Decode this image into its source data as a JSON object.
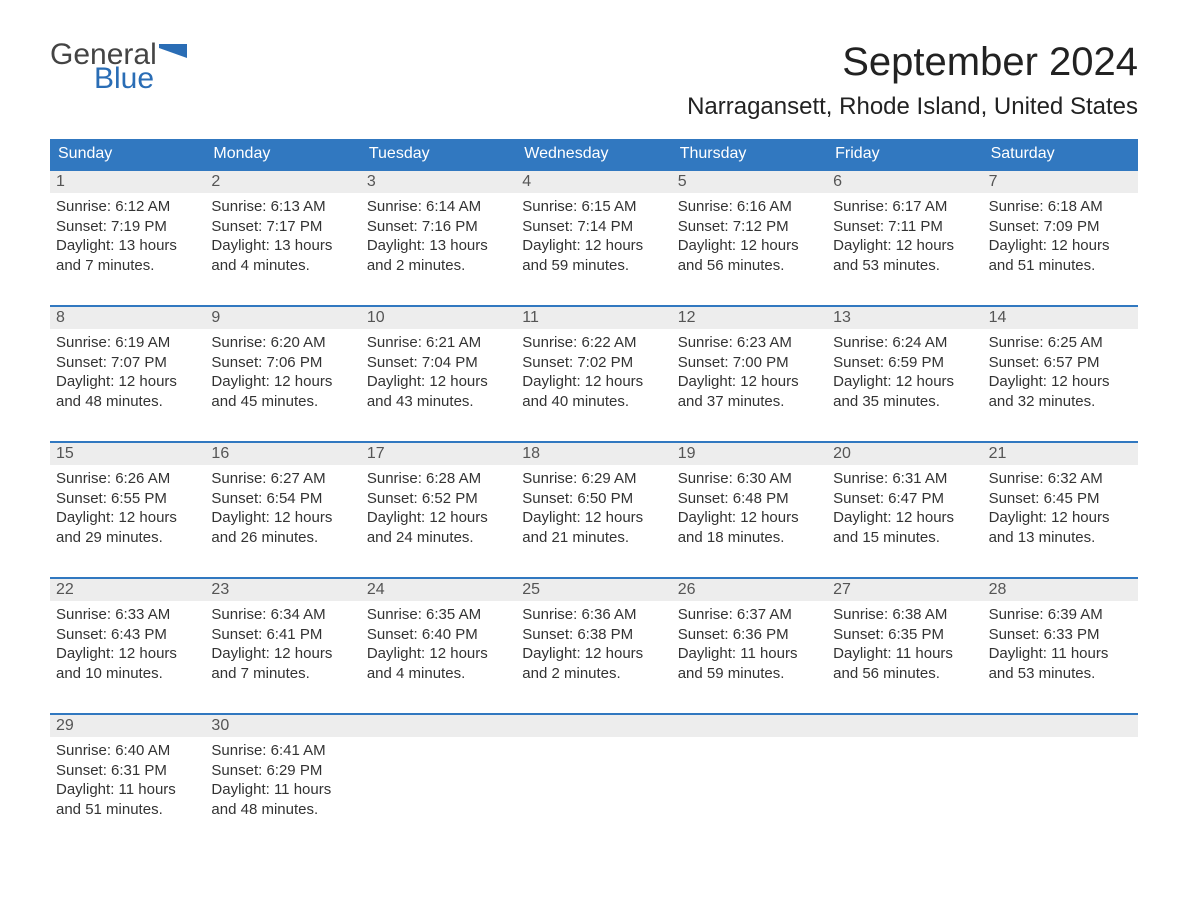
{
  "logo": {
    "text_general": "General",
    "text_blue": "Blue",
    "flag_color": "#2a6db5",
    "text_gray": "#444444"
  },
  "title": "September 2024",
  "location": "Narragansett, Rhode Island, United States",
  "colors": {
    "header_bg": "#3178c0",
    "header_text": "#ffffff",
    "week_border": "#3178c0",
    "date_strip_bg": "#ededed",
    "date_strip_text": "#555555",
    "body_text": "#333333",
    "page_bg": "#ffffff"
  },
  "typography": {
    "title_fontsize": 40,
    "location_fontsize": 24,
    "header_fontsize": 16,
    "date_fontsize": 16,
    "body_fontsize": 15,
    "logo_fontsize": 30
  },
  "day_names": [
    "Sunday",
    "Monday",
    "Tuesday",
    "Wednesday",
    "Thursday",
    "Friday",
    "Saturday"
  ],
  "weeks": [
    [
      {
        "date": "1",
        "sunrise": "Sunrise: 6:12 AM",
        "sunset": "Sunset: 7:19 PM",
        "day1": "Daylight: 13 hours",
        "day2": "and 7 minutes."
      },
      {
        "date": "2",
        "sunrise": "Sunrise: 6:13 AM",
        "sunset": "Sunset: 7:17 PM",
        "day1": "Daylight: 13 hours",
        "day2": "and 4 minutes."
      },
      {
        "date": "3",
        "sunrise": "Sunrise: 6:14 AM",
        "sunset": "Sunset: 7:16 PM",
        "day1": "Daylight: 13 hours",
        "day2": "and 2 minutes."
      },
      {
        "date": "4",
        "sunrise": "Sunrise: 6:15 AM",
        "sunset": "Sunset: 7:14 PM",
        "day1": "Daylight: 12 hours",
        "day2": "and 59 minutes."
      },
      {
        "date": "5",
        "sunrise": "Sunrise: 6:16 AM",
        "sunset": "Sunset: 7:12 PM",
        "day1": "Daylight: 12 hours",
        "day2": "and 56 minutes."
      },
      {
        "date": "6",
        "sunrise": "Sunrise: 6:17 AM",
        "sunset": "Sunset: 7:11 PM",
        "day1": "Daylight: 12 hours",
        "day2": "and 53 minutes."
      },
      {
        "date": "7",
        "sunrise": "Sunrise: 6:18 AM",
        "sunset": "Sunset: 7:09 PM",
        "day1": "Daylight: 12 hours",
        "day2": "and 51 minutes."
      }
    ],
    [
      {
        "date": "8",
        "sunrise": "Sunrise: 6:19 AM",
        "sunset": "Sunset: 7:07 PM",
        "day1": "Daylight: 12 hours",
        "day2": "and 48 minutes."
      },
      {
        "date": "9",
        "sunrise": "Sunrise: 6:20 AM",
        "sunset": "Sunset: 7:06 PM",
        "day1": "Daylight: 12 hours",
        "day2": "and 45 minutes."
      },
      {
        "date": "10",
        "sunrise": "Sunrise: 6:21 AM",
        "sunset": "Sunset: 7:04 PM",
        "day1": "Daylight: 12 hours",
        "day2": "and 43 minutes."
      },
      {
        "date": "11",
        "sunrise": "Sunrise: 6:22 AM",
        "sunset": "Sunset: 7:02 PM",
        "day1": "Daylight: 12 hours",
        "day2": "and 40 minutes."
      },
      {
        "date": "12",
        "sunrise": "Sunrise: 6:23 AM",
        "sunset": "Sunset: 7:00 PM",
        "day1": "Daylight: 12 hours",
        "day2": "and 37 minutes."
      },
      {
        "date": "13",
        "sunrise": "Sunrise: 6:24 AM",
        "sunset": "Sunset: 6:59 PM",
        "day1": "Daylight: 12 hours",
        "day2": "and 35 minutes."
      },
      {
        "date": "14",
        "sunrise": "Sunrise: 6:25 AM",
        "sunset": "Sunset: 6:57 PM",
        "day1": "Daylight: 12 hours",
        "day2": "and 32 minutes."
      }
    ],
    [
      {
        "date": "15",
        "sunrise": "Sunrise: 6:26 AM",
        "sunset": "Sunset: 6:55 PM",
        "day1": "Daylight: 12 hours",
        "day2": "and 29 minutes."
      },
      {
        "date": "16",
        "sunrise": "Sunrise: 6:27 AM",
        "sunset": "Sunset: 6:54 PM",
        "day1": "Daylight: 12 hours",
        "day2": "and 26 minutes."
      },
      {
        "date": "17",
        "sunrise": "Sunrise: 6:28 AM",
        "sunset": "Sunset: 6:52 PM",
        "day1": "Daylight: 12 hours",
        "day2": "and 24 minutes."
      },
      {
        "date": "18",
        "sunrise": "Sunrise: 6:29 AM",
        "sunset": "Sunset: 6:50 PM",
        "day1": "Daylight: 12 hours",
        "day2": "and 21 minutes."
      },
      {
        "date": "19",
        "sunrise": "Sunrise: 6:30 AM",
        "sunset": "Sunset: 6:48 PM",
        "day1": "Daylight: 12 hours",
        "day2": "and 18 minutes."
      },
      {
        "date": "20",
        "sunrise": "Sunrise: 6:31 AM",
        "sunset": "Sunset: 6:47 PM",
        "day1": "Daylight: 12 hours",
        "day2": "and 15 minutes."
      },
      {
        "date": "21",
        "sunrise": "Sunrise: 6:32 AM",
        "sunset": "Sunset: 6:45 PM",
        "day1": "Daylight: 12 hours",
        "day2": "and 13 minutes."
      }
    ],
    [
      {
        "date": "22",
        "sunrise": "Sunrise: 6:33 AM",
        "sunset": "Sunset: 6:43 PM",
        "day1": "Daylight: 12 hours",
        "day2": "and 10 minutes."
      },
      {
        "date": "23",
        "sunrise": "Sunrise: 6:34 AM",
        "sunset": "Sunset: 6:41 PM",
        "day1": "Daylight: 12 hours",
        "day2": "and 7 minutes."
      },
      {
        "date": "24",
        "sunrise": "Sunrise: 6:35 AM",
        "sunset": "Sunset: 6:40 PM",
        "day1": "Daylight: 12 hours",
        "day2": "and 4 minutes."
      },
      {
        "date": "25",
        "sunrise": "Sunrise: 6:36 AM",
        "sunset": "Sunset: 6:38 PM",
        "day1": "Daylight: 12 hours",
        "day2": "and 2 minutes."
      },
      {
        "date": "26",
        "sunrise": "Sunrise: 6:37 AM",
        "sunset": "Sunset: 6:36 PM",
        "day1": "Daylight: 11 hours",
        "day2": "and 59 minutes."
      },
      {
        "date": "27",
        "sunrise": "Sunrise: 6:38 AM",
        "sunset": "Sunset: 6:35 PM",
        "day1": "Daylight: 11 hours",
        "day2": "and 56 minutes."
      },
      {
        "date": "28",
        "sunrise": "Sunrise: 6:39 AM",
        "sunset": "Sunset: 6:33 PM",
        "day1": "Daylight: 11 hours",
        "day2": "and 53 minutes."
      }
    ],
    [
      {
        "date": "29",
        "sunrise": "Sunrise: 6:40 AM",
        "sunset": "Sunset: 6:31 PM",
        "day1": "Daylight: 11 hours",
        "day2": "and 51 minutes."
      },
      {
        "date": "30",
        "sunrise": "Sunrise: 6:41 AM",
        "sunset": "Sunset: 6:29 PM",
        "day1": "Daylight: 11 hours",
        "day2": "and 48 minutes."
      },
      {
        "blank": true
      },
      {
        "blank": true
      },
      {
        "blank": true
      },
      {
        "blank": true
      },
      {
        "blank": true
      }
    ]
  ]
}
